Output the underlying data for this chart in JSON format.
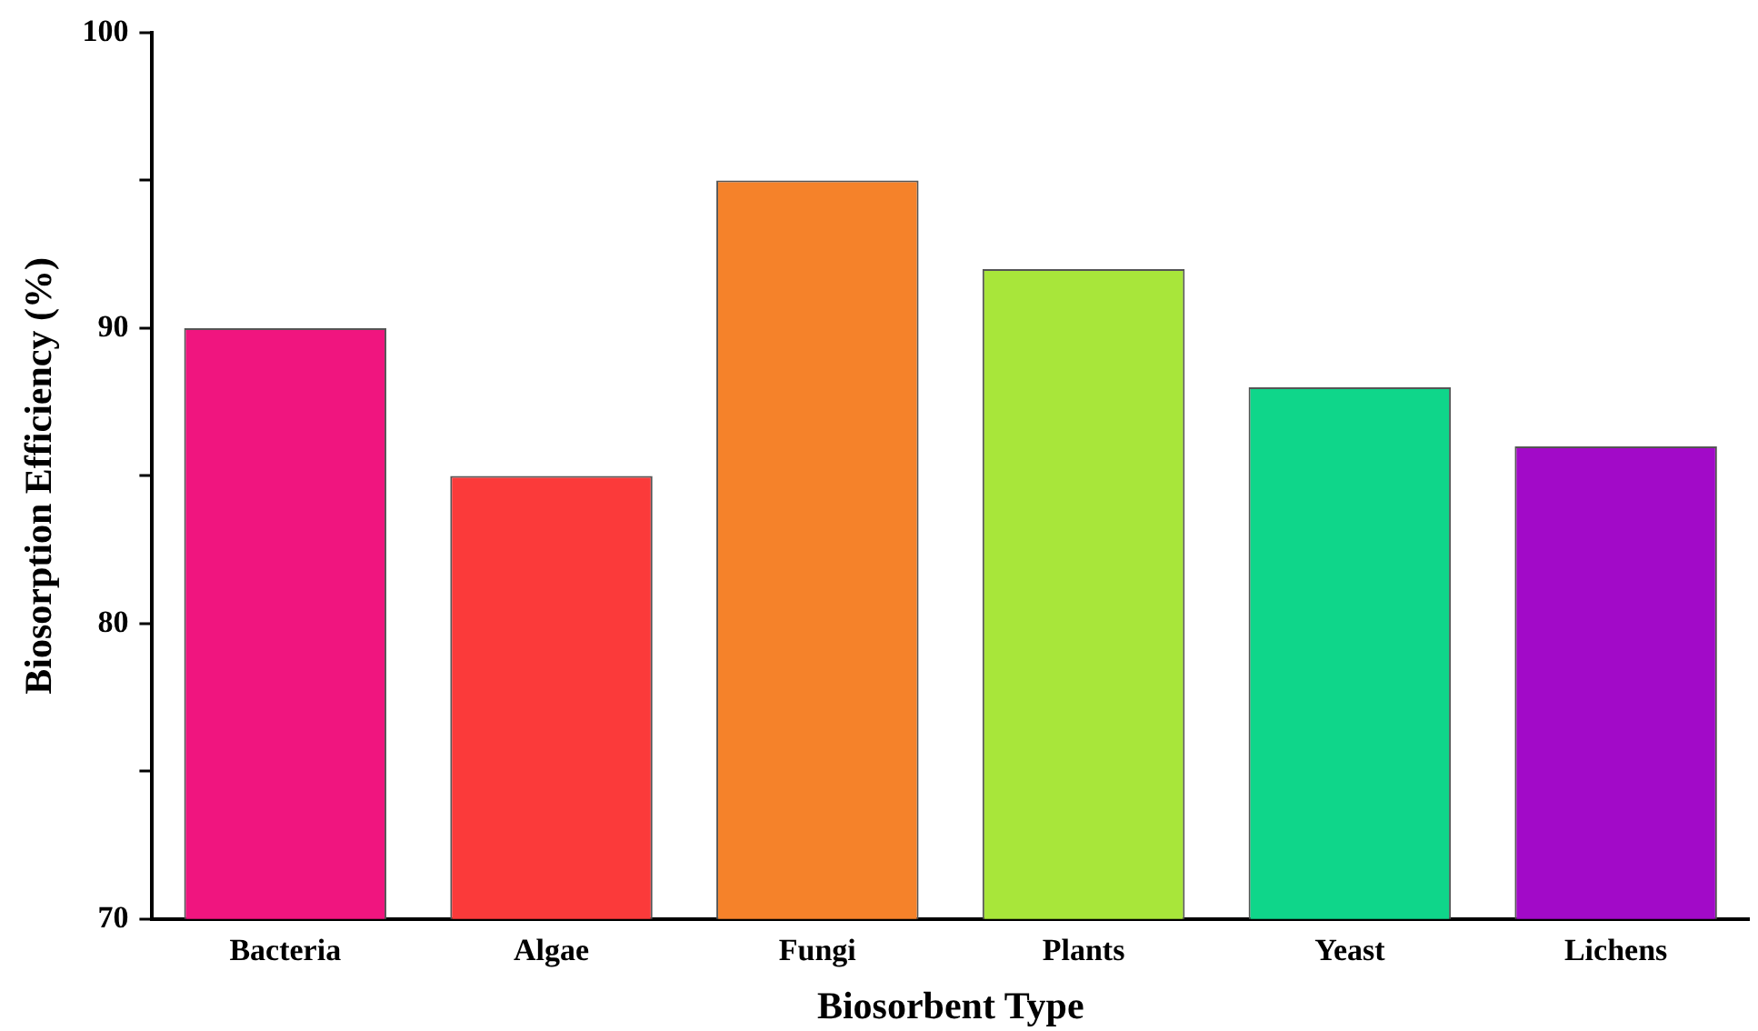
{
  "chart_data": {
    "type": "bar",
    "xlabel": "Biosorbent Type",
    "ylabel": "Biosorption Efficiency (%)",
    "categories": [
      "Bacteria",
      "Algae",
      "Fungi",
      "Plants",
      "Yeast",
      "Lichens"
    ],
    "values": [
      90,
      85,
      95,
      92,
      88,
      86
    ],
    "colors": [
      "#f0157f",
      "#fb3a3a",
      "#f5822a",
      "#a8e63a",
      "#0fd68a",
      "#a20ac8"
    ],
    "ylim": [
      70,
      100
    ],
    "yticks": [
      70,
      {
        "value": 75,
        "label": null
      },
      80,
      {
        "value": 85,
        "label": null
      },
      90,
      {
        "value": 95,
        "label": null
      },
      100
    ],
    "grid": false,
    "legend": false
  }
}
